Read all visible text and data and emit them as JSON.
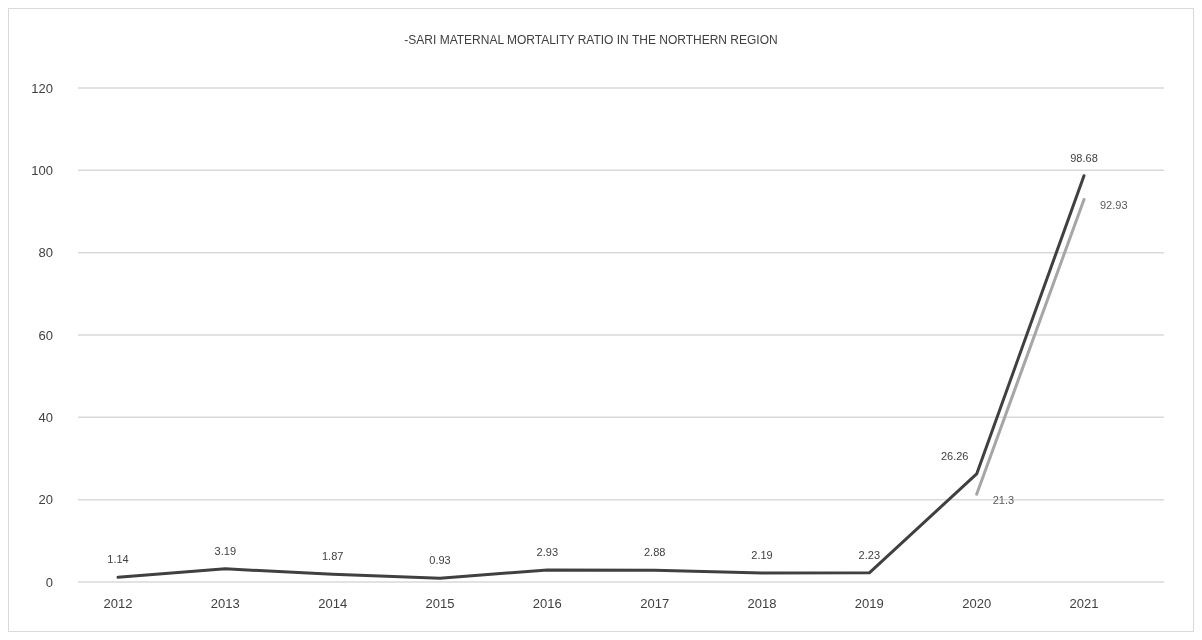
{
  "chart_data": {
    "type": "line",
    "title": "-SARI MATERNAL MORTALITY RATIO IN THE NORTHERN REGION",
    "categories": [
      "2012",
      "2013",
      "2014",
      "2015",
      "2016",
      "2017",
      "2018",
      "2019",
      "2020",
      "2021"
    ],
    "series": [
      {
        "color": "#404040",
        "values": [
          1.14,
          3.19,
          1.87,
          0.93,
          2.93,
          2.88,
          2.19,
          2.23,
          26.26,
          98.68
        ]
      },
      {
        "color": "#a6a6a6",
        "values": [
          null,
          null,
          null,
          null,
          null,
          null,
          null,
          null,
          21.3,
          92.93
        ]
      }
    ],
    "ylim": [
      0,
      120
    ],
    "yticks": [
      0,
      20,
      40,
      60,
      80,
      100,
      120
    ],
    "grid": "y",
    "data_labels": true,
    "marker": "none",
    "line_style": "solid"
  }
}
